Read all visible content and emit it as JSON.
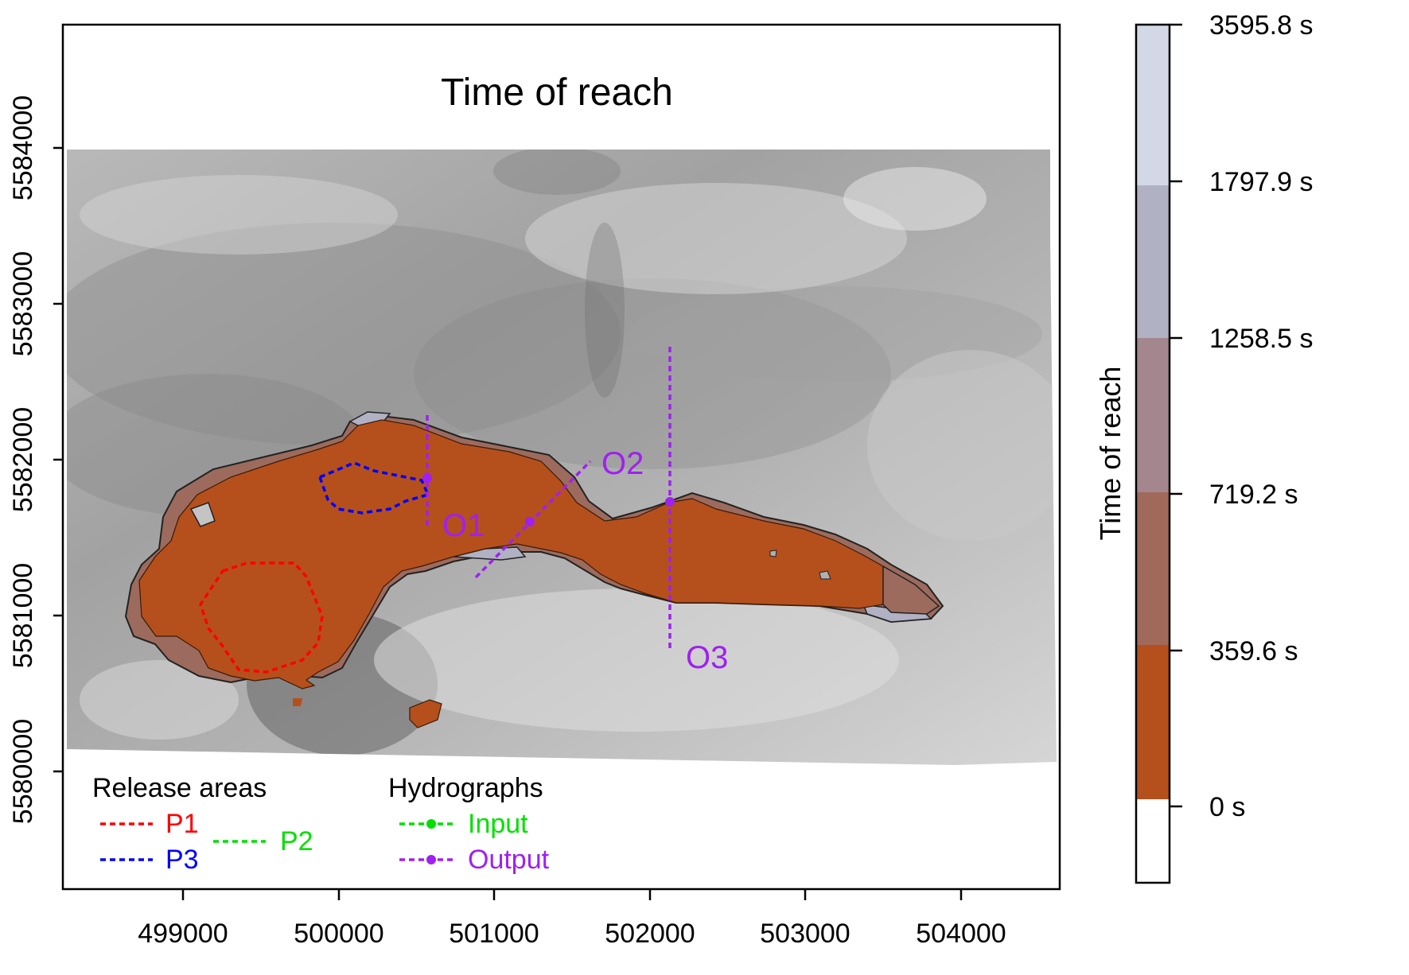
{
  "title": "Time of reach",
  "x_ticks": [
    "499000",
    "500000",
    "501000",
    "502000",
    "503000",
    "504000"
  ],
  "y_ticks": [
    "5580000",
    "5581000",
    "5582000",
    "5583000",
    "5584000"
  ],
  "legend_release": {
    "title": "Release areas",
    "items": [
      {
        "label": "P1",
        "color": "#ff0000"
      },
      {
        "label": "P2",
        "color": "#00e000"
      },
      {
        "label": "P3",
        "color": "#0000ff"
      }
    ]
  },
  "legend_hydro": {
    "title": "Hydrographs",
    "items": [
      {
        "label": "Input",
        "color": "#00e000"
      },
      {
        "label": "Output",
        "color": "#a020f0"
      }
    ]
  },
  "profiles": {
    "o1": "O1",
    "o2": "O2",
    "o3": "O3",
    "color": "#a020f0"
  },
  "colorbar": {
    "title": "Time of reach",
    "labels": [
      "3595.8 s",
      "1797.9 s",
      "1258.5 s",
      "719.2 s",
      "359.6 s",
      "0 s"
    ],
    "class_colors": [
      "#ffffff",
      "#b5501c",
      "#a0695a",
      "#a4868e",
      "#b1b1c4",
      "#d3d8e6"
    ]
  }
}
